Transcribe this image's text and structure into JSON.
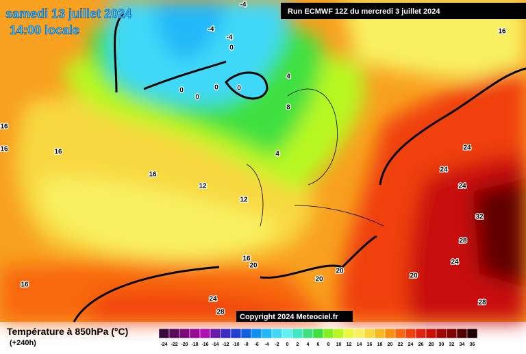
{
  "header": {
    "date": "samedi 13 juillet 2024",
    "time": "14:00 locale",
    "run": "Run ECMWF 12Z du mercredi 3 juillet 2024"
  },
  "copyright": "Copyright 2024 Meteociel.fr",
  "footer": {
    "title": "Température à 850hPa (°C)",
    "lead": "(+240h)"
  },
  "legend": {
    "labels": [
      -24,
      -22,
      -20,
      -18,
      -16,
      -14,
      -12,
      -10,
      -8,
      -6,
      -4,
      -2,
      0,
      2,
      4,
      6,
      8,
      10,
      12,
      14,
      16,
      18,
      20,
      22,
      24,
      26,
      28,
      30,
      32,
      34,
      36
    ],
    "colors": [
      "#3a0a3a",
      "#5a0a5a",
      "#7a0a7a",
      "#960a96",
      "#b010b0",
      "#6a1aa8",
      "#3c2cc0",
      "#2040d0",
      "#1060e0",
      "#1090f0",
      "#20b8f8",
      "#40d8f8",
      "#60f0f0",
      "#40e8c0",
      "#40e080",
      "#40e040",
      "#80f020",
      "#b8f820",
      "#e8f840",
      "#f8f060",
      "#f8d840",
      "#f8b820",
      "#f89010",
      "#f86810",
      "#f04010",
      "#e02010",
      "#c81008",
      "#a00808",
      "#800404",
      "#500000",
      "#200000"
    ]
  },
  "map_labels": [
    -4,
    -4,
    -4,
    0,
    16,
    4,
    0,
    0,
    0,
    0,
    8,
    16,
    16,
    16,
    4,
    16,
    12,
    12,
    24,
    24,
    24,
    32,
    28,
    24,
    16,
    20,
    20,
    20,
    20,
    16,
    24,
    28,
    28
  ]
}
